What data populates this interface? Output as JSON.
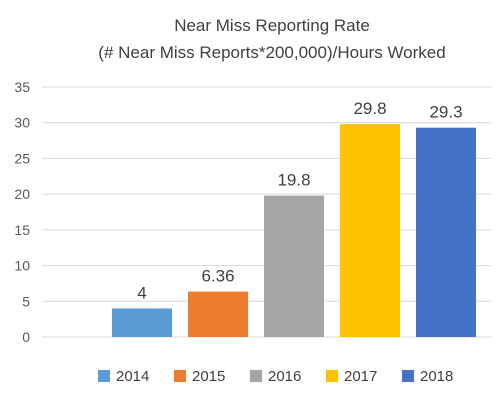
{
  "chart_data": {
    "type": "bar",
    "title": "Near Miss Reporting Rate",
    "subtitle": "(# Near Miss Reports*200,000)/Hours Worked",
    "categories": [
      "2014",
      "2015",
      "2016",
      "2017",
      "2018"
    ],
    "values": [
      4,
      6.36,
      19.8,
      29.8,
      29.3
    ],
    "value_labels": [
      "4",
      "6.36",
      "19.8",
      "29.8",
      "29.3"
    ],
    "colors": [
      "#5b9bd5",
      "#ed7d31",
      "#a5a5a5",
      "#ffc000",
      "#4472c4"
    ],
    "ylim": [
      0,
      35
    ],
    "yticks": [
      0,
      5,
      10,
      15,
      20,
      25,
      30,
      35
    ],
    "grid": true,
    "legend_position": "bottom"
  }
}
